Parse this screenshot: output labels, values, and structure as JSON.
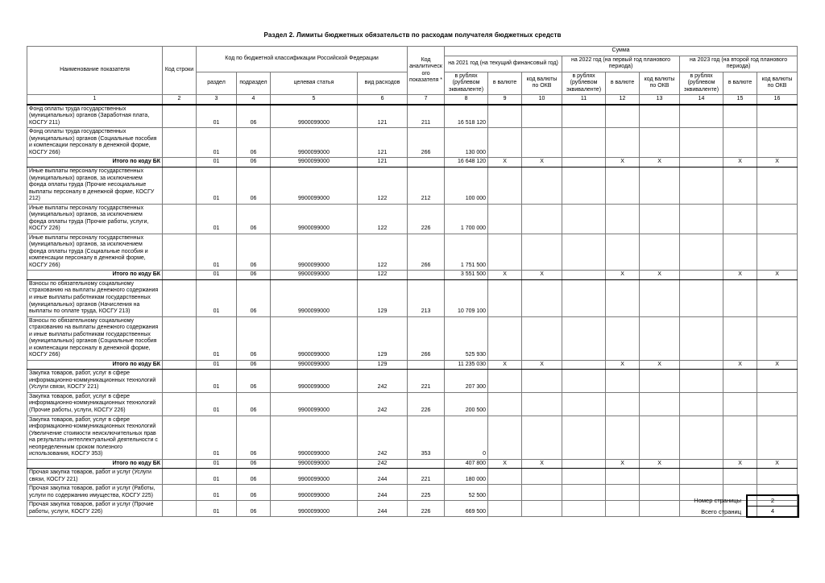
{
  "title": "Раздел 2. Лимиты бюджетных обязательств по расходам получателя бюджетных средств",
  "x_mark": "X",
  "header": {
    "name": "Наименование показателя",
    "line_code": "Код строки",
    "kbk": "Код по бюджетной классификации Российской Федерации",
    "kbk_cols": [
      "раздел",
      "подраздел",
      "целевая статья",
      "вид расходов"
    ],
    "analytic": "Код аналитического показателя *",
    "summa": "Сумма",
    "years": [
      "на 2021 год (на текущий финансовый год)",
      "на 2022 год (на первый год планового периода)",
      "на 2023 год (на второй год планового периода)"
    ],
    "sub": [
      "в рублях (рублевом эквиваленте)",
      "в валюте",
      "код валюты по ОКВ"
    ],
    "col_numbers": [
      "1",
      "2",
      "3",
      "4",
      "5",
      "6",
      "7",
      "8",
      "9",
      "10",
      "11",
      "12",
      "13",
      "14",
      "15",
      "16"
    ]
  },
  "rows": [
    {
      "type": "data",
      "name": "Фонд оплаты труда государственных (муниципальных) органов (Заработная плата, КОСГУ 211)",
      "section": "01",
      "subsection": "06",
      "article": "9900099000",
      "expense_type": "121",
      "analytic_code": "211",
      "amount_2021": "16 518 120"
    },
    {
      "type": "data",
      "name": "Фонд оплаты труда государственных (муниципальных) органов (Социальные пособия и компенсации персоналу в денежной форме, КОСГУ 266)",
      "section": "01",
      "subsection": "06",
      "article": "9900099000",
      "expense_type": "121",
      "analytic_code": "266",
      "amount_2021": "130 000"
    },
    {
      "type": "total",
      "name": "Итого по коду БК",
      "section": "01",
      "subsection": "06",
      "article": "9900099000",
      "expense_type": "121",
      "analytic_code": "",
      "amount_2021": "16 648 120"
    },
    {
      "type": "data",
      "name": "Иные выплаты персоналу государственных (муниципальных) органов, за исключением фонда оплаты труда (Прочие несоциальные выплаты персоналу в денежной форме, КОСГУ 212)",
      "section": "01",
      "subsection": "06",
      "article": "9900099000",
      "expense_type": "122",
      "analytic_code": "212",
      "amount_2021": "100 000"
    },
    {
      "type": "data",
      "name": "Иные выплаты персоналу государственных (муниципальных) органов, за исключением фонда оплаты труда (Прочие работы, услуги, КОСГУ 226)",
      "section": "01",
      "subsection": "06",
      "article": "9900099000",
      "expense_type": "122",
      "analytic_code": "226",
      "amount_2021": "1 700 000"
    },
    {
      "type": "data",
      "name": "Иные выплаты персоналу государственных (муниципальных) органов, за исключением фонда оплаты труда (Социальные пособия и компенсации персоналу в денежной форме, КОСГУ 266)",
      "section": "01",
      "subsection": "06",
      "article": "9900099000",
      "expense_type": "122",
      "analytic_code": "266",
      "amount_2021": "1 751 500"
    },
    {
      "type": "total",
      "name": "Итого по коду БК",
      "section": "01",
      "subsection": "06",
      "article": "9900099000",
      "expense_type": "122",
      "analytic_code": "",
      "amount_2021": "3 551 500"
    },
    {
      "type": "data",
      "name": "Взносы по обязательному социальному страхованию на выплаты денежного содержания и иные выплаты работникам государственных (муниципальных) органов (Начисления на выплаты по оплате труда, КОСГУ 213)",
      "section": "01",
      "subsection": "06",
      "article": "9900099000",
      "expense_type": "129",
      "analytic_code": "213",
      "amount_2021": "10 709 100"
    },
    {
      "type": "data",
      "name": "Взносы по обязательному социальному страхованию на выплаты денежного содержания и иные выплаты работникам государственных (муниципальных) органов (Социальные пособия и компенсации персоналу в денежной форме, КОСГУ 266)",
      "section": "01",
      "subsection": "06",
      "article": "9900099000",
      "expense_type": "129",
      "analytic_code": "266",
      "amount_2021": "525 930"
    },
    {
      "type": "total",
      "name": "Итого по коду БК",
      "section": "01",
      "subsection": "06",
      "article": "9900099000",
      "expense_type": "129",
      "analytic_code": "",
      "amount_2021": "11 235 030"
    },
    {
      "type": "data",
      "name": "Закупка товаров, работ, услуг в сфере информационно-коммуникационных технологий (Услуги связи, КОСГУ 221)",
      "section": "01",
      "subsection": "06",
      "article": "9900099000",
      "expense_type": "242",
      "analytic_code": "221",
      "amount_2021": "207 300"
    },
    {
      "type": "data",
      "name": "Закупка товаров, работ, услуг в сфере информационно-коммуникационных технологий (Прочие работы, услуги, КОСГУ 226)",
      "section": "01",
      "subsection": "06",
      "article": "9900099000",
      "expense_type": "242",
      "analytic_code": "226",
      "amount_2021": "200 500"
    },
    {
      "type": "data",
      "name": "Закупка товаров, работ, услуг в сфере информационно-коммуникационных технологий (Увеличение стоимости неисключительных прав на результаты интеллектуальной деятельности с неопределенным сроком полезного использования, КОСГУ 353)",
      "section": "01",
      "subsection": "06",
      "article": "9900099000",
      "expense_type": "242",
      "analytic_code": "353",
      "amount_2021": "0"
    },
    {
      "type": "total",
      "name": "Итого по коду БК",
      "section": "01",
      "subsection": "06",
      "article": "9900099000",
      "expense_type": "242",
      "analytic_code": "",
      "amount_2021": "407 800"
    },
    {
      "type": "data",
      "name": "Прочая закупка товаров, работ и услуг (Услуги связи, КОСГУ 221)",
      "section": "01",
      "subsection": "06",
      "article": "9900099000",
      "expense_type": "244",
      "analytic_code": "221",
      "amount_2021": "180 000"
    },
    {
      "type": "data",
      "name": "Прочая закупка товаров, работ и услуг (Работы, услуги по содержанию имущества, КОСГУ 225)",
      "section": "01",
      "subsection": "06",
      "article": "9900099000",
      "expense_type": "244",
      "analytic_code": "225",
      "amount_2021": "52 500"
    },
    {
      "type": "data",
      "name": "Прочая закупка товаров, работ и услуг (Прочие работы, услуги, КОСГУ 226)",
      "section": "01",
      "subsection": "06",
      "article": "9900099000",
      "expense_type": "244",
      "analytic_code": "226",
      "amount_2021": "669 500"
    }
  ],
  "footer": {
    "page_label": "Номер страницы",
    "page_value": "2",
    "total_label": "Всего страниц",
    "total_value": "4"
  }
}
